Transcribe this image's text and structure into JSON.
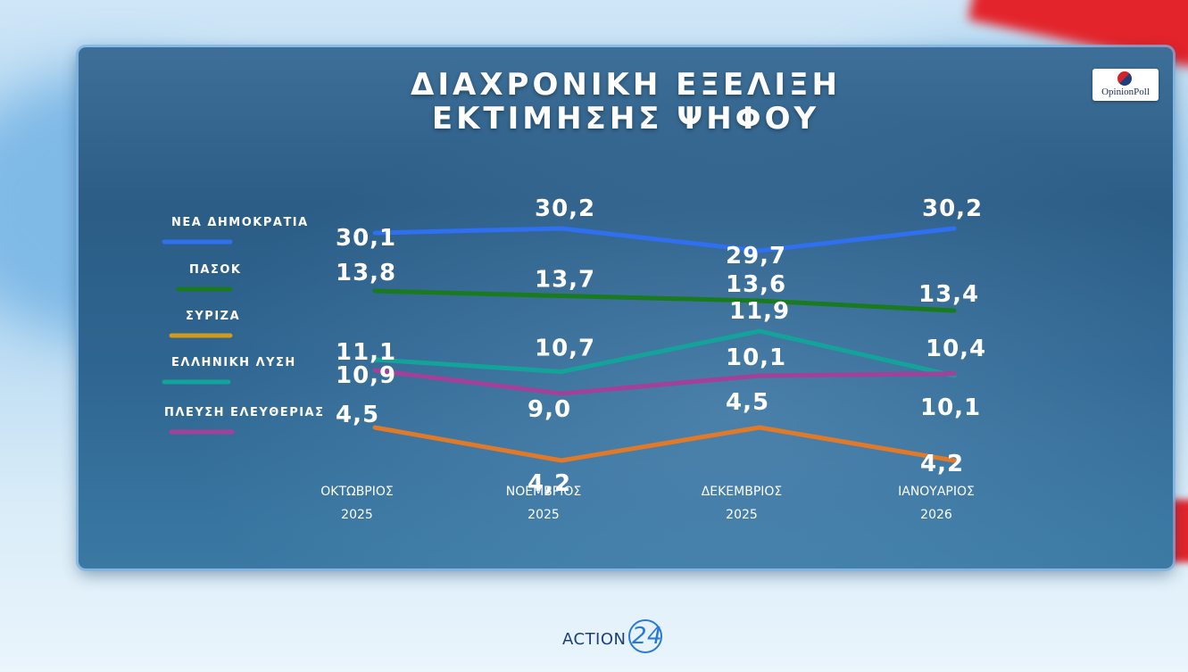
{
  "title_line1": "ΔΙΑΧΡΟΝΙΚΗ ΕΞΕΛΙΞΗ",
  "title_line2": "ΕΚΤΙΜΗΣΗΣ ΨΗΦΟΥ",
  "logo_text": "OpinionPoll",
  "brand": {
    "word": "ACTION",
    "number": "24"
  },
  "chart_data": {
    "type": "line",
    "title": "ΔΙΑΧΡΟΝΙΚΗ ΕΞΕΛΙΞΗ ΕΚΤΙΜΗΣΗΣ ΨΗΦΟΥ",
    "categories": [
      [
        "ΟΚΤΩΒΡΙΟΣ",
        "2025"
      ],
      [
        "ΝΟΕΜΒΡΙΟΣ",
        "2025"
      ],
      [
        "ΔΕΚΕΜΒΡΙΟΣ",
        "2025"
      ],
      [
        "ΙΑΝΟΥΑΡΙΟΣ",
        "2026"
      ]
    ],
    "series": [
      {
        "name": "ΝΕΑ ΔΗΜΟΚΡΑΤΙΑ",
        "color": "#2f6ff0",
        "values": [
          30.1,
          30.2,
          29.7,
          30.2
        ],
        "labels": [
          "30,1",
          "30,2",
          "29,7",
          "30,2"
        ]
      },
      {
        "name": "ΠΑΣΟΚ",
        "color": "#1a7a1e",
        "values": [
          13.8,
          13.7,
          13.6,
          13.4
        ],
        "labels": [
          "13,8",
          "13,7",
          "13,6",
          "13,4"
        ]
      },
      {
        "name": "ΣΥΡΙΖΑ",
        "color": "#e07a2a",
        "values": [
          4.5,
          4.2,
          4.5,
          4.2
        ],
        "labels": [
          "4,5",
          "4,2",
          "4,5",
          "4,2"
        ]
      },
      {
        "name": "ΕΛΛΗΝΙΚΗ ΛΥΣΗ",
        "color": "#13a39a",
        "values": [
          11.1,
          10.7,
          11.9,
          10.1
        ],
        "labels": [
          "11,1",
          "10,7",
          "11,9",
          "10,1"
        ]
      },
      {
        "name": "ΠΛΕΥΣΗ ΕΛΕΥΘΕΡΙΑΣ",
        "color": "#a2409a",
        "values": [
          10.9,
          9.0,
          10.1,
          10.4
        ],
        "labels": [
          "10,9",
          "9,0",
          "10,1",
          "10,4"
        ]
      }
    ],
    "legend_position": "left",
    "legend_colors": {
      "ΣΥΡΙΖΑ": "#d09a1c"
    },
    "grid": false
  }
}
